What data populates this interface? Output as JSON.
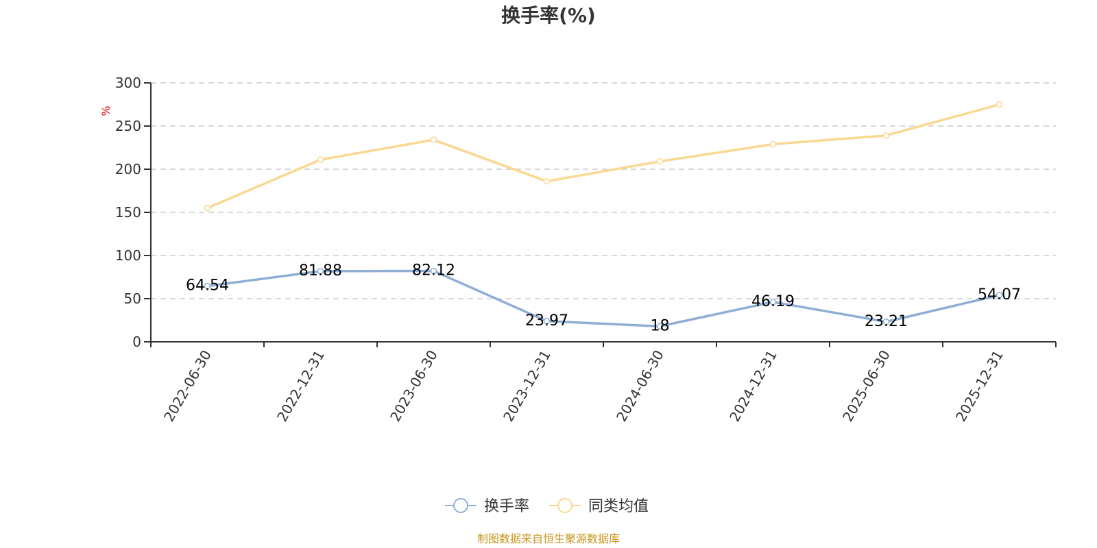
{
  "chart_data": {
    "type": "line",
    "title": "换手率(%)",
    "ylabel": "%",
    "xlabel": "",
    "ylim": [
      0,
      300
    ],
    "yticks": [
      0,
      50,
      100,
      150,
      200,
      250,
      300
    ],
    "categories": [
      "2022-06-30",
      "2022-12-31",
      "2023-06-30",
      "2023-12-31",
      "2024-06-30",
      "2024-12-31",
      "2025-06-30",
      "2025-12-31"
    ],
    "grid": true,
    "legend_position": "bottom",
    "series": [
      {
        "name": "换手率",
        "color": "#8eaed6",
        "values": [
          64.54,
          81.88,
          82.12,
          23.97,
          18,
          46.19,
          23.21,
          54.07
        ],
        "labels": [
          "64.54",
          "81.88",
          "82.12",
          "23.97",
          "18",
          "46.19",
          "23.21",
          "54.07"
        ]
      },
      {
        "name": "同类均值",
        "color": "#fbd891",
        "values": [
          155,
          211,
          234,
          186,
          209,
          229,
          239,
          275
        ]
      }
    ]
  },
  "source_text": "制图数据来自恒生聚源数据库"
}
